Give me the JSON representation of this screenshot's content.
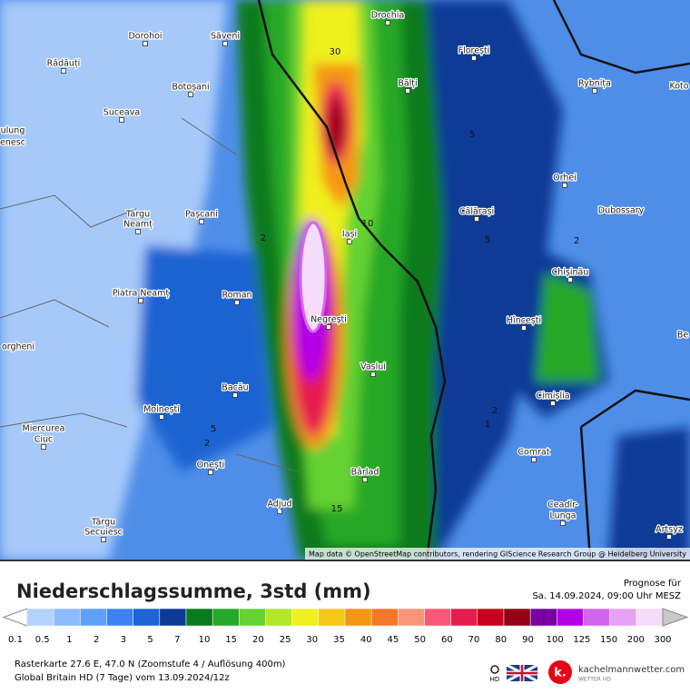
{
  "map": {
    "cities": [
      "Dorohoi",
      "Săveni",
      "Drochia",
      "Florești",
      "Rădăuți",
      "Botoșani",
      "Bălți",
      "Rybnița",
      "Koto",
      "Suceava",
      "ulung",
      "enesc",
      "Orhei",
      "Târgu",
      "Neamț",
      "Pașcani",
      "Călărași",
      "Dubossary",
      "Iași",
      "Chișinău",
      "Piatra Neamț",
      "Roman",
      "Negrești",
      "Hîncești",
      "Vaslui",
      "Bacău",
      "Cimișlia",
      "Moinești",
      "Miercurea",
      "Ciuc",
      "Comrat",
      "Onești",
      "Bârlad",
      "Adjud",
      "Ceadîr-",
      "Lunga",
      "Târgu",
      "Secuiesc",
      "Artsyz",
      "orgheni",
      "Be"
    ],
    "contour_labels": [
      30,
      10,
      2,
      5,
      5,
      2,
      2,
      1,
      5,
      2,
      15
    ],
    "attribution": "Map data © OpenStreetMap contributors, rendering GIScience Research Group @ Heidelberg University"
  },
  "legend": {
    "title": "Niederschlagssumme, 3std (mm)",
    "forecast_label": "Prognose für",
    "forecast_time": "Sa. 14.09.2024, 09:00 Uhr MESZ",
    "labels": [
      0.1,
      0.5,
      1,
      2,
      3,
      5,
      7,
      10,
      15,
      20,
      25,
      30,
      35,
      40,
      45,
      50,
      60,
      70,
      80,
      90,
      100,
      125,
      150,
      200,
      300
    ],
    "colors": [
      "#b4d2ff",
      "#8cbcff",
      "#5fa0fa",
      "#3c82f0",
      "#1e64d2",
      "#0c3a96",
      "#0a7a1e",
      "#28a828",
      "#64d232",
      "#b4e628",
      "#f0f01e",
      "#f5c814",
      "#f59614",
      "#f57828",
      "#fa9678",
      "#fa5a78",
      "#e61e50",
      "#c8001e",
      "#960014",
      "#7800a0",
      "#b400e6",
      "#d264f0",
      "#e6a0f5",
      "#f5dcfa",
      "#c8c8c8"
    ]
  },
  "footer": {
    "line1": "Rasterkarte 27.6 E, 47.0 N (Zoomstufe 4 / Auflösung 400m)",
    "line2": "Global Britain HD (7 Tage) vom 13.09.2024/12z",
    "hd": "HD",
    "brand": "kachelmannwetter.com",
    "brand_sub": "WETTER HD"
  }
}
